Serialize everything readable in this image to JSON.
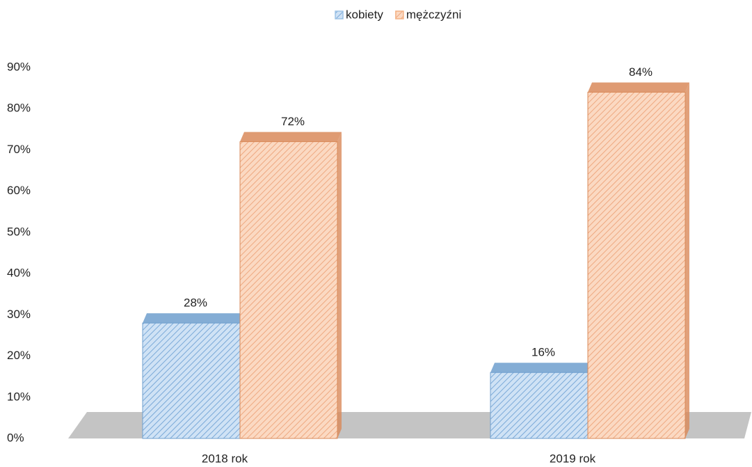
{
  "chart_data": {
    "type": "bar3d",
    "categories": [
      "2018 rok",
      "2019 rok"
    ],
    "series": [
      {
        "name": "kobiety",
        "color": "#9dc3e6",
        "values": [
          28,
          16
        ],
        "value_labels": [
          "28%",
          "16%"
        ]
      },
      {
        "name": "mężczyźni",
        "color": "#f4b183",
        "values": [
          72,
          84
        ],
        "value_labels": [
          "72%",
          "84%"
        ]
      }
    ],
    "ylim": [
      0,
      90
    ],
    "yticks": [
      {
        "value": 0,
        "label": "0%"
      },
      {
        "value": 10,
        "label": "10%"
      },
      {
        "value": 20,
        "label": "20%"
      },
      {
        "value": 30,
        "label": "30%"
      },
      {
        "value": 40,
        "label": "40%"
      },
      {
        "value": 50,
        "label": "50%"
      },
      {
        "value": 60,
        "label": "60%"
      },
      {
        "value": 70,
        "label": "70%"
      },
      {
        "value": 80,
        "label": "80%"
      },
      {
        "value": 90,
        "label": "90%"
      }
    ],
    "legend": "top"
  }
}
